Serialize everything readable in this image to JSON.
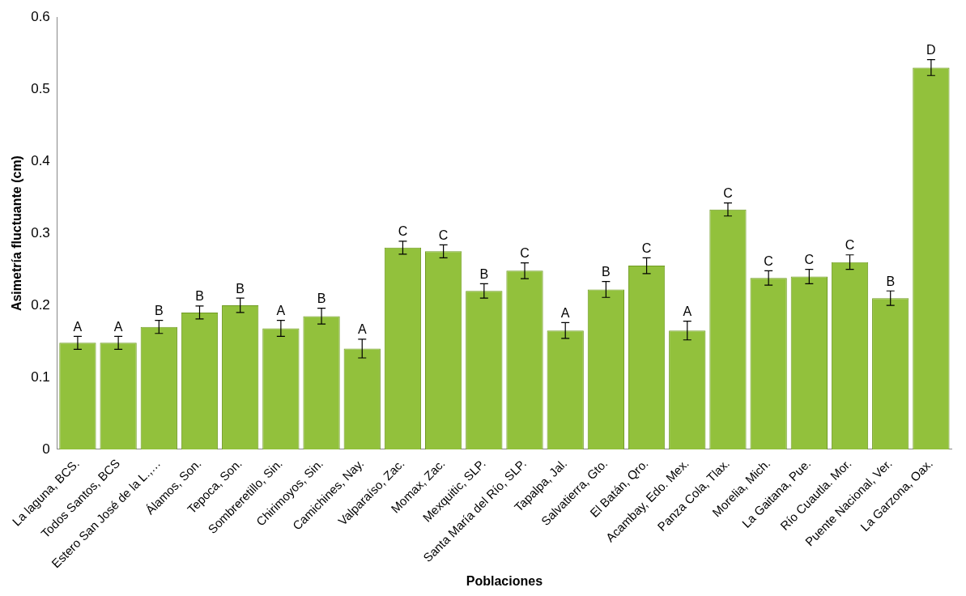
{
  "chart_data": {
    "type": "bar",
    "xlabel": "Poblaciones",
    "ylabel": "Asimetría fluctuante (cm)",
    "categories": [
      "La laguna, BCS.",
      "Todos Santos, BCS",
      "Estero San José de la L.,…",
      "Álamos, Son.",
      "Tepoca, Son.",
      "Sombreretillo, Sin.",
      "Chirimoyos, Sin.",
      "Camichines, Nay.",
      "Valparaíso, Zac.",
      "Momax, Zac.",
      "Mexquitic, SLP.",
      "Santa María del Río, SLP.",
      "Tapalpa, Jal.",
      "Salvatierra, Gto.",
      "El Batán, Qro.",
      "Acambay, Edo. Mex.",
      "Panza Cola, Tlax.",
      "Morelia, Mich.",
      "La Gaitana, Pue.",
      "Río Cuautla. Mor.",
      "Puente Nacional, Ver.",
      "La Garzona, Oax."
    ],
    "values": [
      0.148,
      0.148,
      0.17,
      0.19,
      0.2,
      0.168,
      0.185,
      0.14,
      0.28,
      0.275,
      0.22,
      0.248,
      0.165,
      0.222,
      0.255,
      0.165,
      0.333,
      0.238,
      0.24,
      0.26,
      0.21,
      0.53
    ],
    "errors": [
      0.009,
      0.009,
      0.009,
      0.009,
      0.01,
      0.011,
      0.011,
      0.013,
      0.009,
      0.009,
      0.01,
      0.011,
      0.011,
      0.011,
      0.011,
      0.013,
      0.009,
      0.01,
      0.01,
      0.01,
      0.01,
      0.011
    ],
    "value_labels": [
      "A",
      "A",
      "B",
      "B",
      "B",
      "A",
      "B",
      "A",
      "C",
      "C",
      "B",
      "C",
      "A",
      "B",
      "C",
      "A",
      "C",
      "C",
      "C",
      "C",
      "B",
      "D"
    ],
    "color": "#92c13c",
    "ylim": [
      0,
      0.6
    ],
    "yticks": [
      0,
      0.1,
      0.2,
      0.3,
      0.4,
      0.5,
      0.6
    ],
    "grid": false,
    "legend": false
  }
}
